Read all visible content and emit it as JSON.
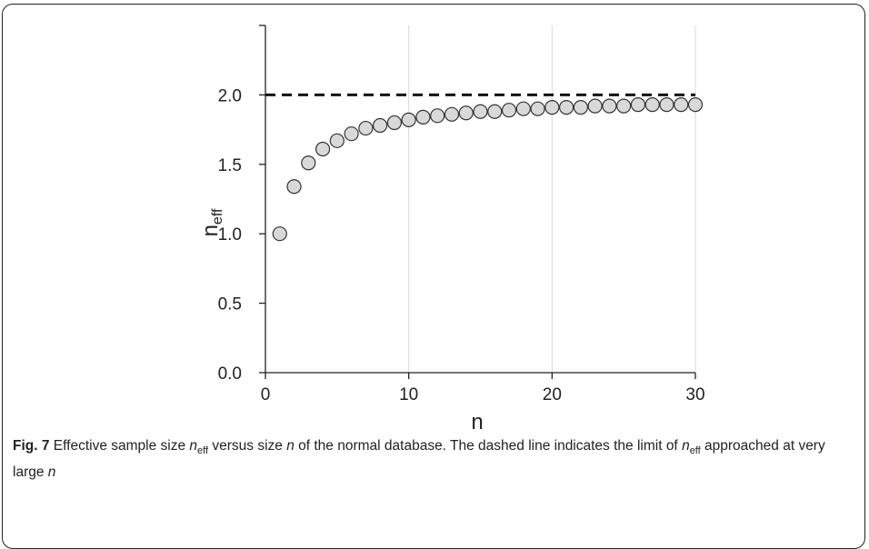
{
  "chart_data": {
    "type": "scatter",
    "x": [
      1,
      2,
      3,
      4,
      5,
      6,
      7,
      8,
      9,
      10,
      11,
      12,
      13,
      14,
      15,
      16,
      17,
      18,
      19,
      20,
      21,
      22,
      23,
      24,
      25,
      26,
      27,
      28,
      29,
      30
    ],
    "y": [
      1.0,
      1.34,
      1.51,
      1.61,
      1.67,
      1.72,
      1.76,
      1.78,
      1.8,
      1.82,
      1.84,
      1.85,
      1.86,
      1.87,
      1.88,
      1.88,
      1.89,
      1.9,
      1.9,
      1.91,
      1.91,
      1.91,
      1.92,
      1.92,
      1.92,
      1.93,
      1.93,
      1.93,
      1.93,
      1.93
    ],
    "limit_line": {
      "y": 2.0,
      "style": "dashed"
    },
    "xlabel": "n",
    "ylabel_main": "n",
    "ylabel_sub": "eff",
    "xlim": [
      0,
      30
    ],
    "ylim": [
      0,
      2.5
    ],
    "xticks": [
      0,
      10,
      20,
      30
    ],
    "xtick_labels": [
      "0",
      "10",
      "20",
      "30"
    ],
    "yticks": [
      0.0,
      0.5,
      1.0,
      1.5,
      2.0
    ],
    "ytick_labels": [
      "0.0",
      "0.5",
      "1.0",
      "1.5",
      "2.0"
    ],
    "grid": "vertical",
    "marker_fill": "#d9d9d9",
    "marker_stroke": "#333333",
    "line_color": "#111111"
  },
  "caption": {
    "label": "Fig. 7",
    "t1": " Effective sample size ",
    "n1": "n",
    "s1": "eff",
    "t2": " versus size ",
    "n2": "n",
    "t3": " of the normal database. The dashed line indicates the limit of ",
    "n3": "n",
    "s3": "eff",
    "t4": " approached at very large ",
    "n4": "n"
  }
}
